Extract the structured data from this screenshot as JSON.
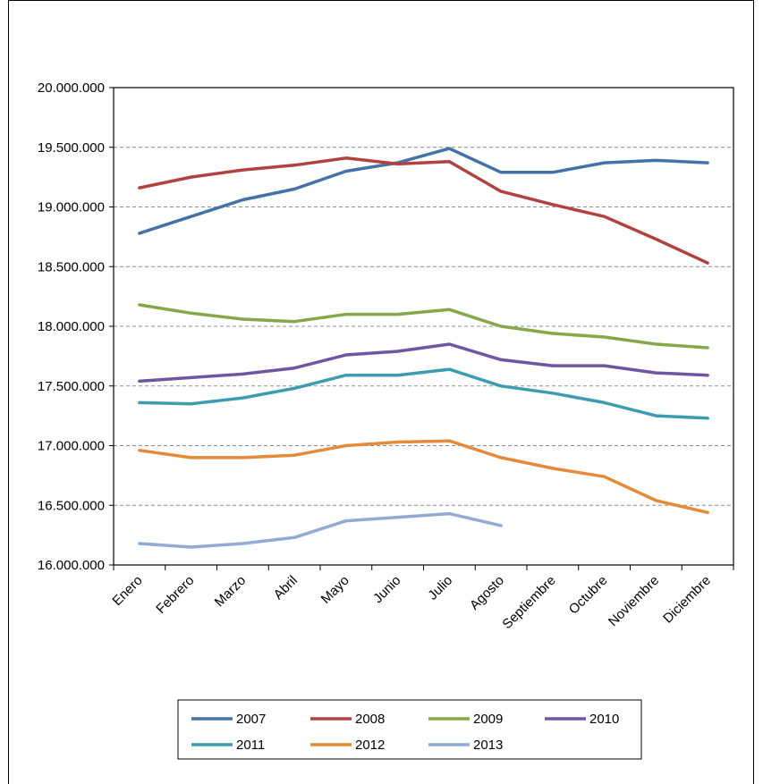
{
  "chart_data": {
    "type": "line",
    "title": "",
    "xlabel": "",
    "ylabel": "",
    "ylim": [
      16000000,
      20000000
    ],
    "yticks": [
      16000000,
      16500000,
      17000000,
      17500000,
      18000000,
      18500000,
      19000000,
      19500000,
      20000000
    ],
    "ytick_labels": [
      "16.000.000",
      "16.500.000",
      "17.000.000",
      "17.500.000",
      "18.000.000",
      "18.500.000",
      "19.000.000",
      "19.500.000",
      "20.000.000"
    ],
    "grid": "horizontal dashed",
    "legend_position": "bottom",
    "categories": [
      "Enero",
      "Febrero",
      "Marzo",
      "Abril",
      "Mayo",
      "Junio",
      "Julio",
      "Agosto",
      "Septiembre",
      "Octubre",
      "Noviembre",
      "Diciembre"
    ],
    "series": [
      {
        "name": "2007",
        "color": "#4472A8",
        "values": [
          18780000,
          18920000,
          19060000,
          19150000,
          19300000,
          19370000,
          19490000,
          19290000,
          19290000,
          19370000,
          19390000,
          19370000
        ]
      },
      {
        "name": "2008",
        "color": "#B0433F",
        "values": [
          19160000,
          19250000,
          19310000,
          19350000,
          19410000,
          19360000,
          19380000,
          19130000,
          19020000,
          18920000,
          18730000,
          18530000
        ]
      },
      {
        "name": "2009",
        "color": "#86A84A",
        "values": [
          18180000,
          18110000,
          18060000,
          18040000,
          18100000,
          18100000,
          18140000,
          18000000,
          17940000,
          17910000,
          17850000,
          17820000
        ]
      },
      {
        "name": "2010",
        "color": "#7056A0",
        "values": [
          17540000,
          17570000,
          17600000,
          17650000,
          17760000,
          17790000,
          17850000,
          17720000,
          17670000,
          17670000,
          17610000,
          17590000
        ]
      },
      {
        "name": "2011",
        "color": "#3D9CB0",
        "values": [
          17360000,
          17350000,
          17400000,
          17480000,
          17590000,
          17590000,
          17640000,
          17500000,
          17440000,
          17360000,
          17250000,
          17230000
        ]
      },
      {
        "name": "2012",
        "color": "#E48A3A",
        "values": [
          16960000,
          16900000,
          16900000,
          16920000,
          17000000,
          17030000,
          17040000,
          16900000,
          16810000,
          16740000,
          16540000,
          16440000
        ]
      },
      {
        "name": "2013",
        "color": "#91ABD2",
        "values": [
          16180000,
          16150000,
          16180000,
          16230000,
          16370000,
          16400000,
          16430000,
          16330000,
          null,
          null,
          null,
          null
        ]
      }
    ]
  }
}
